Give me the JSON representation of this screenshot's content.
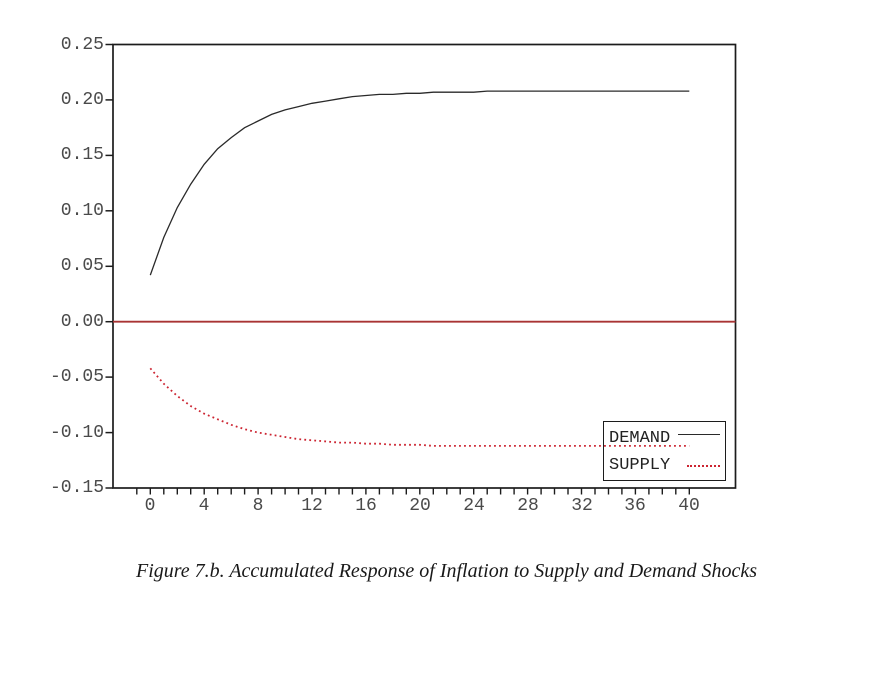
{
  "chart_data": {
    "type": "line",
    "title": "Figure 7.b. Accumulated Response of Inflation to Supply and Demand Shocks",
    "xlabel": "",
    "ylabel": "",
    "xlim": [
      -2.77,
      43.4
    ],
    "ylim": [
      -0.15,
      0.25
    ],
    "grid": false,
    "legend": {
      "position": "inside-bottom-right"
    },
    "x": [
      0,
      1,
      2,
      3,
      4,
      5,
      6,
      7,
      8,
      9,
      10,
      11,
      12,
      13,
      14,
      15,
      16,
      17,
      18,
      19,
      20,
      21,
      22,
      23,
      24,
      25,
      26,
      27,
      28,
      29,
      30,
      31,
      32,
      33,
      34,
      35,
      36,
      37,
      38,
      39,
      40
    ],
    "series": [
      {
        "name": "DEMAND",
        "style": "solid",
        "color": "#2a2a2a",
        "values": [
          0.042,
          0.076,
          0.103,
          0.124,
          0.142,
          0.156,
          0.166,
          0.175,
          0.181,
          0.187,
          0.191,
          0.194,
          0.197,
          0.199,
          0.201,
          0.203,
          0.204,
          0.205,
          0.205,
          0.206,
          0.206,
          0.207,
          0.207,
          0.207,
          0.207,
          0.208,
          0.208,
          0.208,
          0.208,
          0.208,
          0.208,
          0.208,
          0.208,
          0.208,
          0.208,
          0.208,
          0.208,
          0.208,
          0.208,
          0.208,
          0.208
        ]
      },
      {
        "name": "SUPPLY",
        "style": "dotted",
        "color": "#cc2431",
        "values": [
          -0.042,
          -0.056,
          -0.067,
          -0.076,
          -0.083,
          -0.088,
          -0.093,
          -0.097,
          -0.1,
          -0.102,
          -0.104,
          -0.106,
          -0.107,
          -0.108,
          -0.109,
          -0.109,
          -0.11,
          -0.11,
          -0.111,
          -0.111,
          -0.111,
          -0.112,
          -0.112,
          -0.112,
          -0.112,
          -0.112,
          -0.112,
          -0.112,
          -0.112,
          -0.112,
          -0.112,
          -0.112,
          -0.112,
          -0.112,
          -0.112,
          -0.112,
          -0.112,
          -0.112,
          -0.112,
          -0.112,
          -0.112
        ]
      }
    ],
    "zero_line": {
      "value": 0.0,
      "color": "#a93434"
    },
    "y_ticks": {
      "values": [
        0.25,
        0.2,
        0.15,
        0.1,
        0.05,
        0.0,
        -0.05,
        -0.1,
        -0.15
      ],
      "labels": [
        "0.25",
        "0.20",
        "0.15",
        "0.10",
        "0.05",
        "0.00",
        "-0.05",
        "-0.10",
        "-0.15"
      ]
    },
    "x_ticks": {
      "values": [
        0,
        4,
        8,
        12,
        16,
        20,
        24,
        28,
        32,
        36,
        40
      ],
      "labels": [
        "0",
        "4",
        "8",
        "12",
        "16",
        "20",
        "24",
        "28",
        "32",
        "36",
        "40"
      ]
    },
    "x_minor_ticks": {
      "from": -1,
      "to": 40,
      "step": 1
    }
  }
}
